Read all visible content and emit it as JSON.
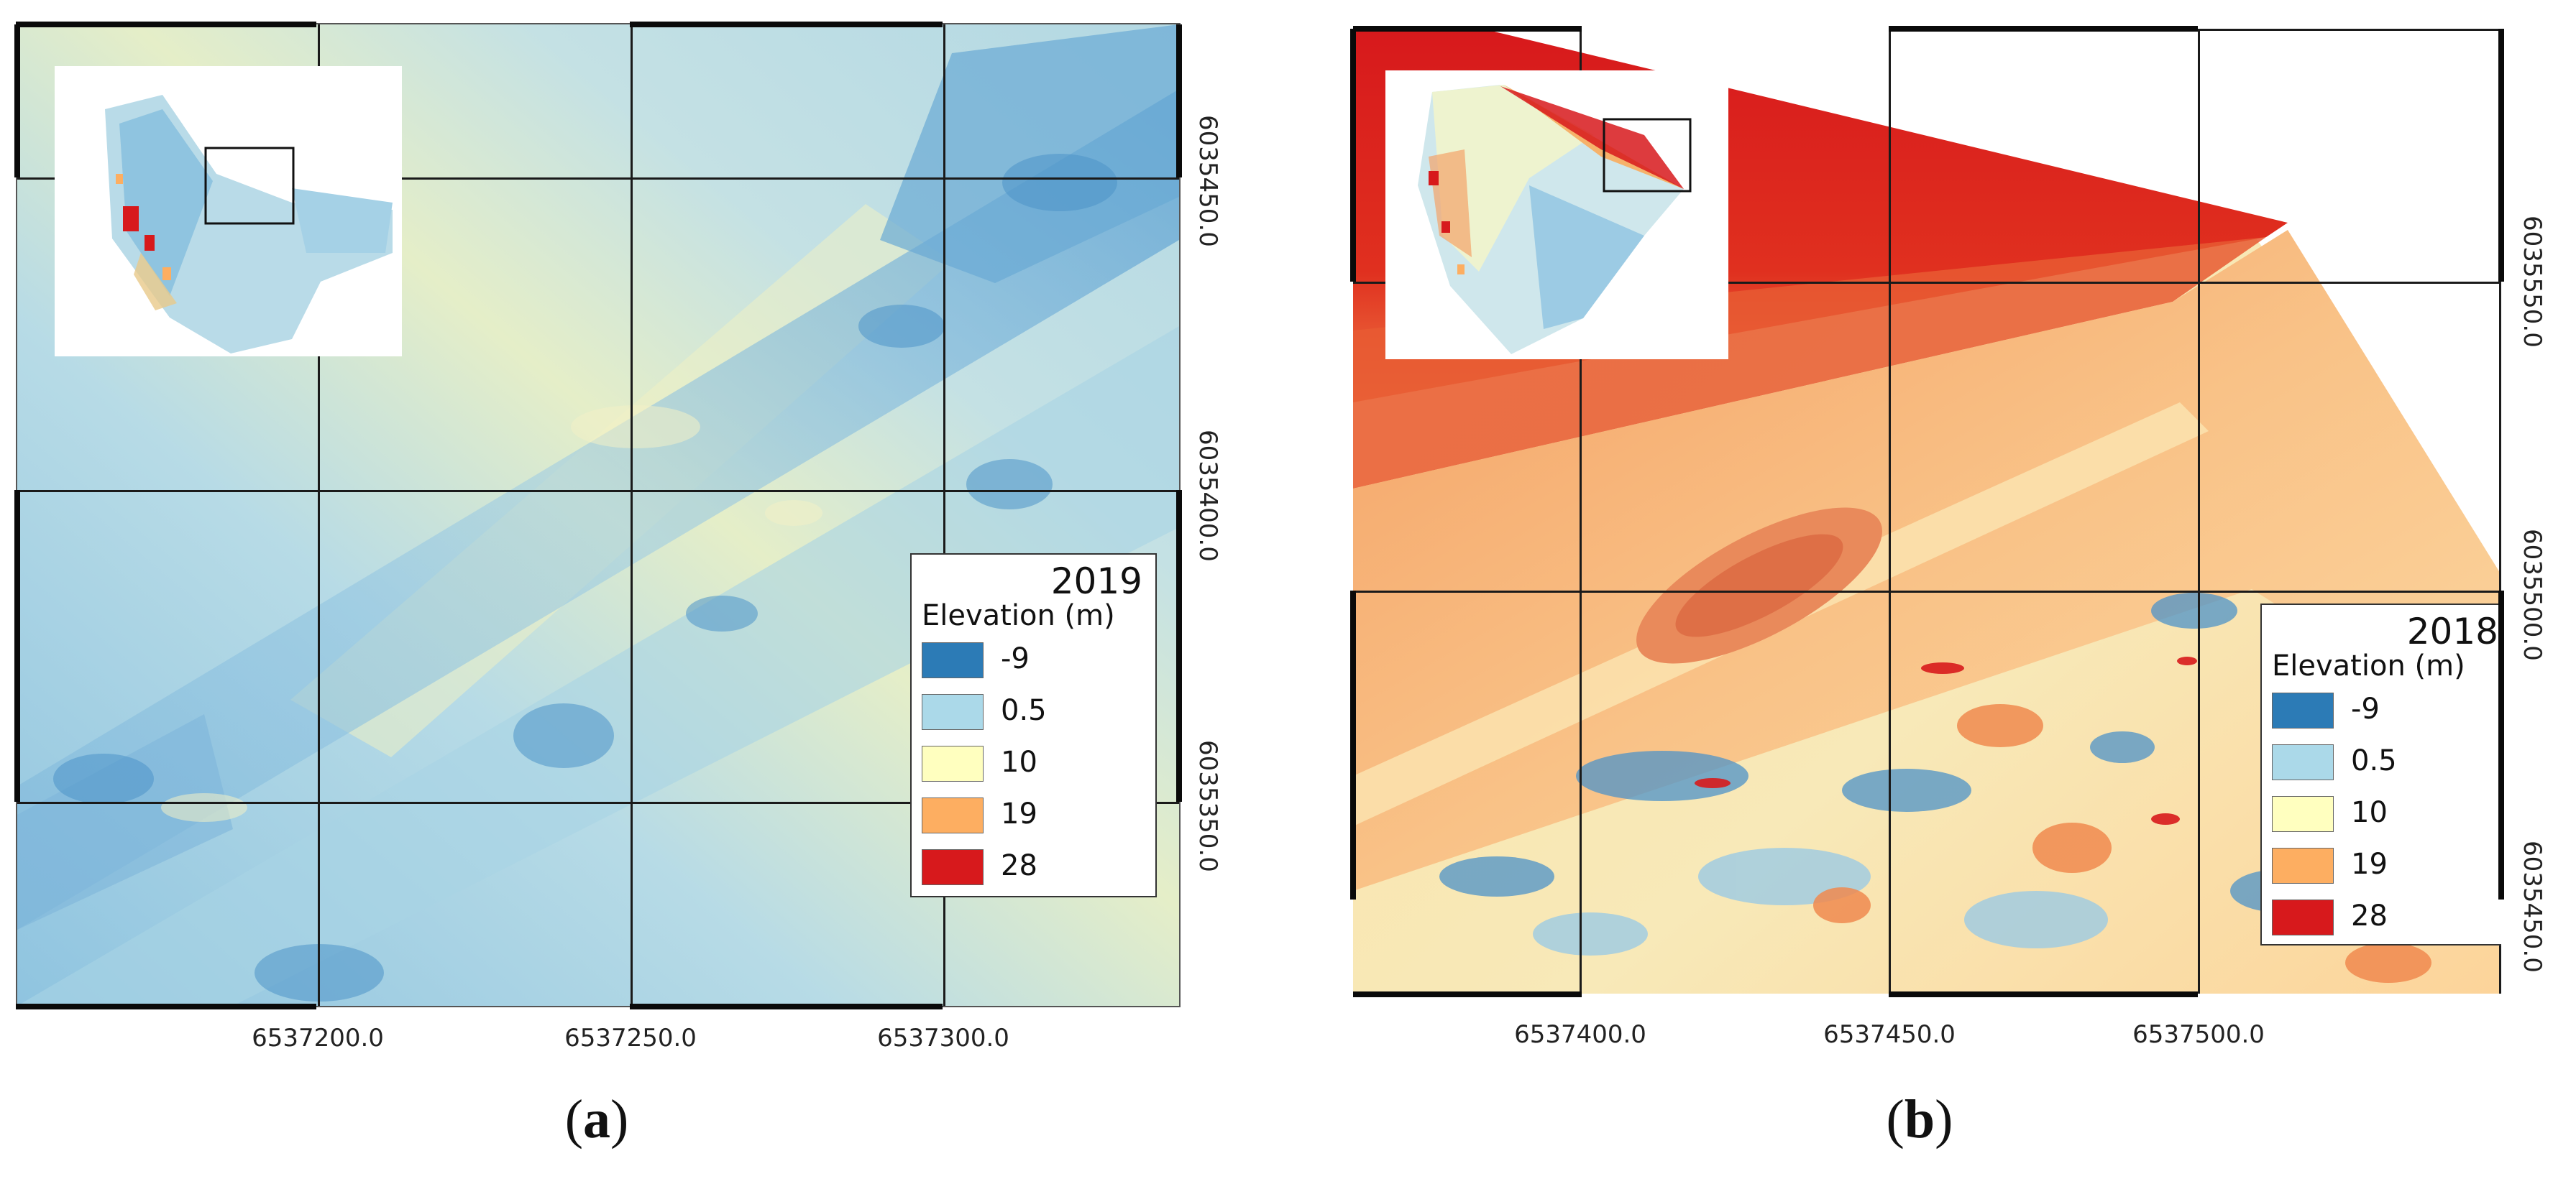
{
  "panels": [
    {
      "id": "a",
      "caption_open": "(",
      "caption_letter": "a",
      "caption_close": ")",
      "year": "2019",
      "legend_heading": "Elevation (m)",
      "x_ticks": [
        "6537200.0",
        "6537250.0",
        "6537300.0"
      ],
      "y_ticks": [
        "6035450.0",
        "6035400.0",
        "6035350.0"
      ]
    },
    {
      "id": "b",
      "caption_open": "(",
      "caption_letter": "b",
      "caption_close": ")",
      "year": "2018",
      "legend_heading": "Elevation (m)",
      "x_ticks": [
        "6537400.0",
        "6537450.0",
        "6537500.0"
      ],
      "y_ticks": [
        "6035550.0",
        "6035500.0",
        "6035450.0"
      ]
    }
  ],
  "legend_classes": [
    {
      "label": "-9",
      "color": "#2c7bb6"
    },
    {
      "label": "0.5",
      "color": "#abd9e9"
    },
    {
      "label": "10",
      "color": "#ffffbf"
    },
    {
      "label": "19",
      "color": "#fdae61"
    },
    {
      "label": "28",
      "color": "#d7191c"
    }
  ]
}
